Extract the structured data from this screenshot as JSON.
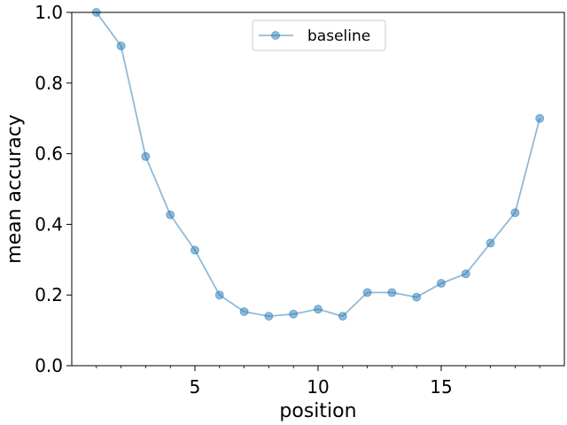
{
  "chart_data": {
    "type": "line",
    "xlabel": "position",
    "ylabel": "mean accuracy",
    "xlim": [
      0,
      20
    ],
    "ylim": [
      0.0,
      1.0
    ],
    "x_ticks": [
      5,
      10,
      15
    ],
    "x_tick_labels": [
      "5",
      "10",
      "15"
    ],
    "x_minor_ticks": [
      1,
      2,
      3,
      4,
      6,
      7,
      8,
      9,
      11,
      12,
      13,
      14,
      16,
      17,
      18,
      19
    ],
    "y_ticks": [
      0.0,
      0.2,
      0.4,
      0.6,
      0.8,
      1.0
    ],
    "y_tick_labels": [
      "0.0",
      "0.2",
      "0.4",
      "0.6",
      "0.8",
      "1.0"
    ],
    "grid": false,
    "legend_position": "top-center",
    "series": [
      {
        "name": "baseline",
        "color": "#1f77b4",
        "marker": "circle",
        "x": [
          1,
          2,
          3,
          4,
          5,
          6,
          7,
          8,
          9,
          10,
          11,
          12,
          13,
          14,
          15,
          16,
          17,
          18,
          19
        ],
        "y": [
          1.0,
          0.905,
          0.592,
          0.427,
          0.327,
          0.2,
          0.153,
          0.14,
          0.146,
          0.16,
          0.14,
          0.207,
          0.207,
          0.194,
          0.233,
          0.26,
          0.347,
          0.433,
          0.7
        ]
      }
    ]
  }
}
